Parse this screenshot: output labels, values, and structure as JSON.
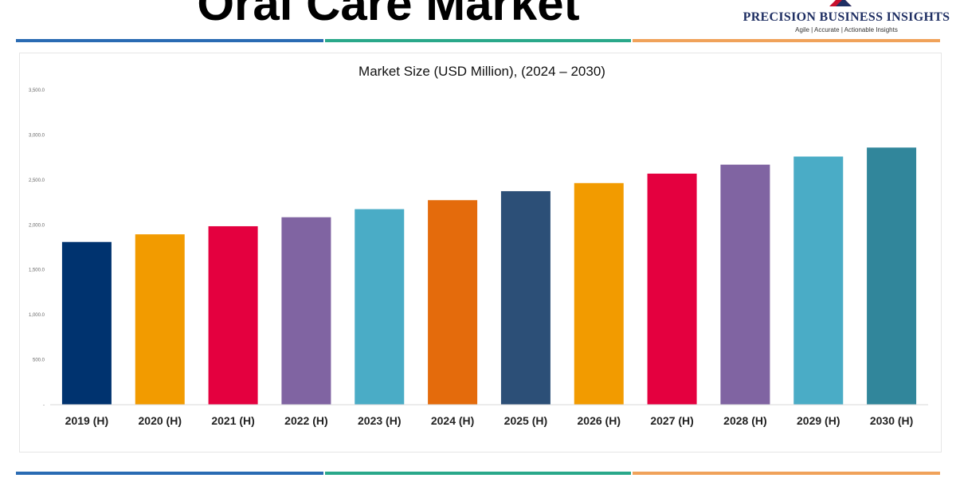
{
  "header": {
    "title": "Oral Care Market"
  },
  "logo": {
    "name": "PRECISION BUSINESS INSIGHTS",
    "tagline": "Agile | Accurate | Actionable Insights"
  },
  "colors": {
    "stripe_blue": "#2a6bb3",
    "stripe_green": "#2aa88a",
    "stripe_orange": "#f0a25a"
  },
  "chart_data": {
    "type": "bar",
    "title": "Market Size (USD Million), (2024 – 2030)",
    "xlabel": "",
    "ylabel": "",
    "ylim": [
      0,
      3500
    ],
    "grid": false,
    "yticks": [
      {
        "value": 0,
        "label": "-"
      },
      {
        "value": 500,
        "label": "500.0"
      },
      {
        "value": 1000,
        "label": "1,000.0"
      },
      {
        "value": 1500,
        "label": "1,500.0"
      },
      {
        "value": 2000,
        "label": "2,000.0"
      },
      {
        "value": 2500,
        "label": "2,500.0"
      },
      {
        "value": 3000,
        "label": "3,000.0"
      },
      {
        "value": 3500,
        "label": "3,500.0"
      }
    ],
    "categories": [
      "2019 (H)",
      "2020 (H)",
      "2021 (H)",
      "2022 (H)",
      "2023 (H)",
      "2024 (H)",
      "2025 (H)",
      "2026 (H)",
      "2027 (H)",
      "2028 (H)",
      "2029 (H)",
      "2030 (H)"
    ],
    "values": [
      1810,
      1895,
      1985,
      2085,
      2175,
      2275,
      2375,
      2465,
      2570,
      2670,
      2760,
      2860
    ],
    "bar_colors": [
      "#00336f",
      "#f29b00",
      "#e4003f",
      "#8064a2",
      "#4aacc6",
      "#e46b0c",
      "#2c4f77",
      "#f29b00",
      "#e4003f",
      "#8064a2",
      "#4aacc6",
      "#31869b"
    ]
  }
}
